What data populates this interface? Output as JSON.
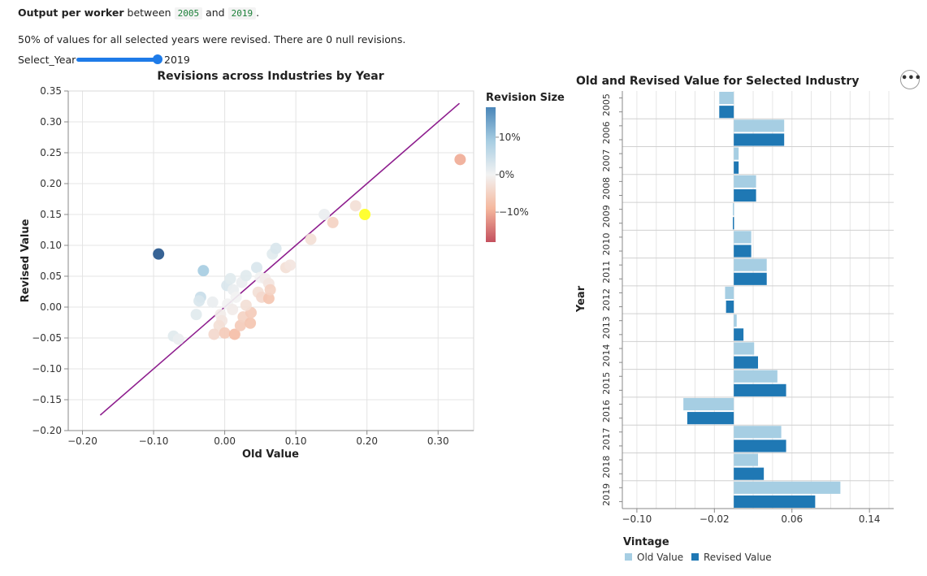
{
  "header": {
    "title_bold": "Output per worker",
    "between": "between",
    "year_start": "2005",
    "and": "and",
    "year_end": "2019",
    "period": "."
  },
  "summary": "50% of values for all selected years were revised. There are 0 null revisions.",
  "slider": {
    "label": "Select_Year",
    "value": "2019",
    "position_fraction": 1.0
  },
  "menu": {
    "icon": "ellipsis-icon",
    "label": "•••"
  },
  "colors": {
    "line": "#8e1e8e",
    "highlight": "#ffff33",
    "old_bar": "#a6cee3",
    "revised_bar": "#1f78b4",
    "slider": "#1e7be8"
  },
  "chart_data": [
    {
      "type": "scatter",
      "title": "Revisions across Industries by Year",
      "xlabel": "Old Value",
      "ylabel": "Revised Value",
      "xlim": [
        -0.22,
        0.35
      ],
      "ylim": [
        -0.2,
        0.35
      ],
      "x_ticks": [
        -0.2,
        -0.1,
        0.0,
        0.1,
        0.2,
        0.3
      ],
      "x_tick_labels": [
        "−0.20",
        "−0.10",
        "0.00",
        "0.10",
        "0.20",
        "0.30"
      ],
      "y_ticks": [
        -0.2,
        -0.15,
        -0.1,
        -0.05,
        0.0,
        0.05,
        0.1,
        0.15,
        0.2,
        0.25,
        0.3,
        0.35
      ],
      "y_tick_labels": [
        "−0.20",
        "−0.15",
        "−0.10",
        "−0.05",
        "0.00",
        "0.05",
        "0.10",
        "0.15",
        "0.20",
        "0.25",
        "0.30",
        "0.35"
      ],
      "grid": true,
      "legend": {
        "title": "Revision Size",
        "placement": "right",
        "labels": [
          "10%",
          "0%",
          "−10%"
        ],
        "label_values": [
          10,
          0,
          -10
        ],
        "range": [
          -18,
          18
        ]
      },
      "reference_line": {
        "x": [
          -0.175,
          0.33
        ],
        "y": [
          -0.175,
          0.33
        ]
      },
      "points": [
        {
          "x": -0.093,
          "y": 0.086,
          "rev": 18
        },
        {
          "x": -0.03,
          "y": 0.059,
          "rev": 9
        },
        {
          "x": -0.034,
          "y": 0.016,
          "rev": 5
        },
        {
          "x": -0.036,
          "y": 0.01,
          "rev": 3
        },
        {
          "x": -0.04,
          "y": -0.012,
          "rev": 2
        },
        {
          "x": -0.072,
          "y": -0.047,
          "rev": 2
        },
        {
          "x": -0.065,
          "y": -0.052,
          "rev": 1
        },
        {
          "x": -0.017,
          "y": 0.008,
          "rev": 1
        },
        {
          "x": 0.003,
          "y": 0.035,
          "rev": 3
        },
        {
          "x": 0.008,
          "y": 0.046,
          "rev": 2
        },
        {
          "x": 0.012,
          "y": 0.028,
          "rev": 1
        },
        {
          "x": 0.016,
          "y": 0.016,
          "rev": 0
        },
        {
          "x": 0.004,
          "y": 0.005,
          "rev": 0
        },
        {
          "x": 0.011,
          "y": -0.004,
          "rev": -1
        },
        {
          "x": -0.006,
          "y": -0.012,
          "rev": -1
        },
        {
          "x": -0.004,
          "y": -0.022,
          "rev": -2
        },
        {
          "x": -0.008,
          "y": -0.03,
          "rev": -3
        },
        {
          "x": -0.015,
          "y": -0.044,
          "rev": -4
        },
        {
          "x": 0.0,
          "y": -0.042,
          "rev": -6
        },
        {
          "x": 0.014,
          "y": -0.044,
          "rev": -8
        },
        {
          "x": 0.022,
          "y": -0.03,
          "rev": -6
        },
        {
          "x": 0.026,
          "y": -0.016,
          "rev": -5
        },
        {
          "x": 0.036,
          "y": -0.026,
          "rev": -7
        },
        {
          "x": 0.037,
          "y": -0.009,
          "rev": -6
        },
        {
          "x": 0.03,
          "y": 0.003,
          "rev": -3
        },
        {
          "x": 0.024,
          "y": 0.04,
          "rev": 1
        },
        {
          "x": 0.03,
          "y": 0.051,
          "rev": 2
        },
        {
          "x": 0.045,
          "y": 0.064,
          "rev": 3
        },
        {
          "x": 0.05,
          "y": 0.048,
          "rev": 0
        },
        {
          "x": 0.057,
          "y": 0.046,
          "rev": -1
        },
        {
          "x": 0.062,
          "y": 0.038,
          "rev": -2
        },
        {
          "x": 0.047,
          "y": 0.024,
          "rev": -3
        },
        {
          "x": 0.052,
          "y": 0.016,
          "rev": -4
        },
        {
          "x": 0.062,
          "y": 0.014,
          "rev": -7
        },
        {
          "x": 0.064,
          "y": 0.028,
          "rev": -5
        },
        {
          "x": 0.067,
          "y": 0.086,
          "rev": 2
        },
        {
          "x": 0.072,
          "y": 0.095,
          "rev": 3
        },
        {
          "x": 0.086,
          "y": 0.064,
          "rev": -3
        },
        {
          "x": 0.092,
          "y": 0.068,
          "rev": -2
        },
        {
          "x": 0.121,
          "y": 0.11,
          "rev": -3
        },
        {
          "x": 0.14,
          "y": 0.15,
          "rev": 1
        },
        {
          "x": 0.152,
          "y": 0.137,
          "rev": -5
        },
        {
          "x": 0.184,
          "y": 0.164,
          "rev": -3
        },
        {
          "x": 0.197,
          "y": 0.15,
          "rev": 0,
          "highlight": true
        },
        {
          "x": 0.331,
          "y": 0.239,
          "rev": -10
        }
      ]
    },
    {
      "type": "bar",
      "title": "Old and Revised Value for Selected Industry",
      "orientation": "horizontal",
      "xlabel": "",
      "ylabel": "Year",
      "categories": [
        "2005",
        "2006",
        "2007",
        "2008",
        "2009",
        "2010",
        "2011",
        "2012",
        "2013",
        "2014",
        "2015",
        "2016",
        "2017",
        "2018",
        "2019"
      ],
      "series": [
        {
          "name": "Old Value",
          "color": "#a6cee3",
          "values": [
            -0.015,
            0.052,
            0.005,
            0.023,
            -0.001,
            0.018,
            0.034,
            -0.009,
            0.003,
            0.021,
            0.045,
            -0.052,
            0.049,
            0.025,
            0.11
          ]
        },
        {
          "name": "Revised Value",
          "color": "#1f78b4",
          "values": [
            -0.015,
            0.052,
            0.005,
            0.023,
            -0.001,
            0.018,
            0.034,
            -0.008,
            0.01,
            0.025,
            0.054,
            -0.048,
            0.054,
            0.031,
            0.084
          ]
        }
      ],
      "xlim": [
        -0.115,
        0.165
      ],
      "x_ticks": [
        -0.1,
        -0.02,
        0.06,
        0.14
      ],
      "x_tick_labels": [
        "−0.10",
        "−0.02",
        "0.06",
        "0.14"
      ],
      "grid": true,
      "legend": {
        "title": "Vintage",
        "placement": "bottom-left",
        "labels": [
          "Old Value",
          "Revised Value"
        ]
      }
    }
  ]
}
